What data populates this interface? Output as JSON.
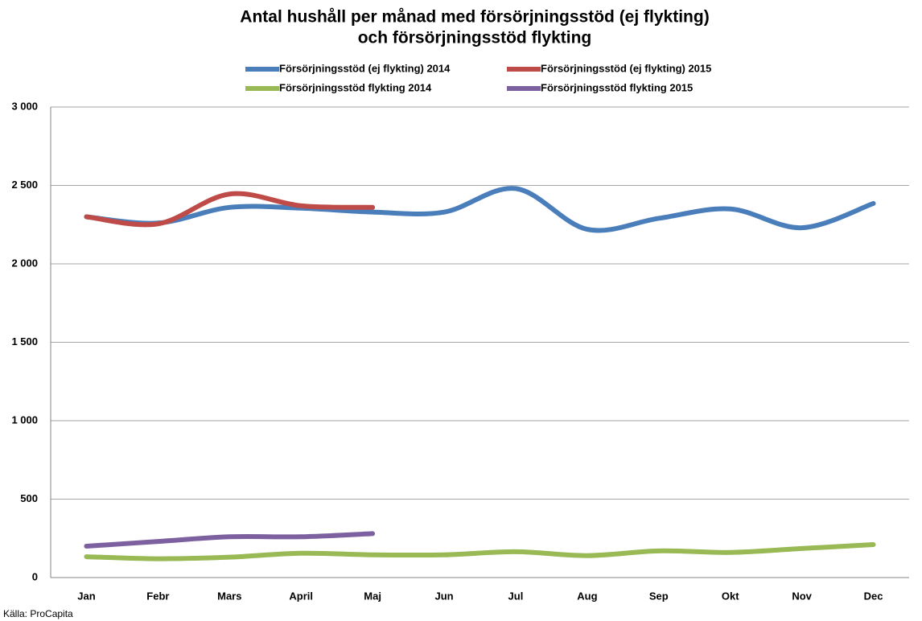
{
  "chart_data": {
    "type": "line",
    "title": [
      "Antal hushåll per månad med försörjningsstöd (ej flykting)",
      "och försörjningsstöd flykting"
    ],
    "source": "Källa: ProCapita",
    "categories": [
      "Jan",
      "Febr",
      "Mars",
      "April",
      "Maj",
      "Jun",
      "Jul",
      "Aug",
      "Sep",
      "Okt",
      "Nov",
      "Dec"
    ],
    "series": [
      {
        "name": "Försörjningsstöd (ej flykting) 2014",
        "color": "#4a7ebb",
        "values": [
          2300,
          2260,
          2360,
          2355,
          2330,
          2330,
          2480,
          2220,
          2290,
          2350,
          2230,
          2385
        ]
      },
      {
        "name": "Försörjningsstöd (ej flykting) 2015",
        "color": "#be4b48",
        "values": [
          2300,
          2255,
          2445,
          2370,
          2360,
          null,
          null,
          null,
          null,
          null,
          null,
          null
        ]
      },
      {
        "name": "Försörjningsstöd flykting 2014",
        "color": "#98b954",
        "values": [
          133,
          120,
          130,
          155,
          145,
          145,
          165,
          140,
          170,
          160,
          185,
          210
        ]
      },
      {
        "name": "Försörjningsstöd flykting 2015",
        "color": "#7d60a0",
        "values": [
          200,
          230,
          260,
          260,
          280,
          null,
          null,
          null,
          null,
          null,
          null,
          null
        ]
      }
    ],
    "ylim": [
      0,
      3000
    ],
    "yticks": [
      {
        "value": 0,
        "label": "0"
      },
      {
        "value": 500,
        "label": "500"
      },
      {
        "value": 1000,
        "label": "1 000"
      },
      {
        "value": 1500,
        "label": "1 500"
      },
      {
        "value": 2000,
        "label": "2 000"
      },
      {
        "value": 2500,
        "label": "2 500"
      },
      {
        "value": 3000,
        "label": "3 000"
      }
    ],
    "grid": true,
    "smooth": true,
    "legend": "top"
  }
}
